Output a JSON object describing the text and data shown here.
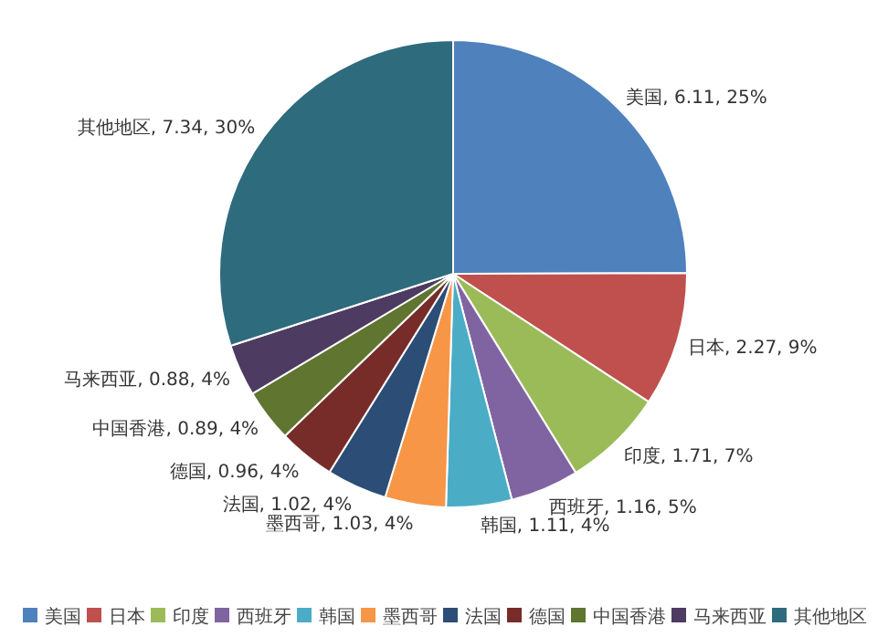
{
  "chart_data": {
    "type": "pie",
    "categories": [
      "美国",
      "日本",
      "印度",
      "西班牙",
      "韩国",
      "墨西哥",
      "法国",
      "德国",
      "中国香港",
      "马来西亚",
      "其他地区"
    ],
    "values": [
      6.11,
      2.27,
      1.71,
      1.16,
      1.11,
      1.03,
      1.02,
      0.96,
      0.89,
      0.88,
      7.34
    ],
    "value_labels": [
      "美国, 6.11, 25%",
      "日本, 2.27, 9%",
      "印度, 1.71, 7%",
      "西班牙, 1.16, 5%",
      "韩国, 1.11, 4%",
      "墨西哥, 1.03, 4%",
      "法国, 1.02, 4%",
      "德国, 0.96, 4%",
      "中国香港, 0.89, 4%",
      "马来西亚, 0.88, 4%",
      "其他地区, 7.34, 30%"
    ],
    "colors": [
      "#4f81bd",
      "#c0504d",
      "#9bbb59",
      "#8064a2",
      "#4bacc6",
      "#f79646",
      "#2c4d75",
      "#772c2a",
      "#5f7530",
      "#4d3b62",
      "#2e6b7d"
    ],
    "legend": "bottom"
  }
}
